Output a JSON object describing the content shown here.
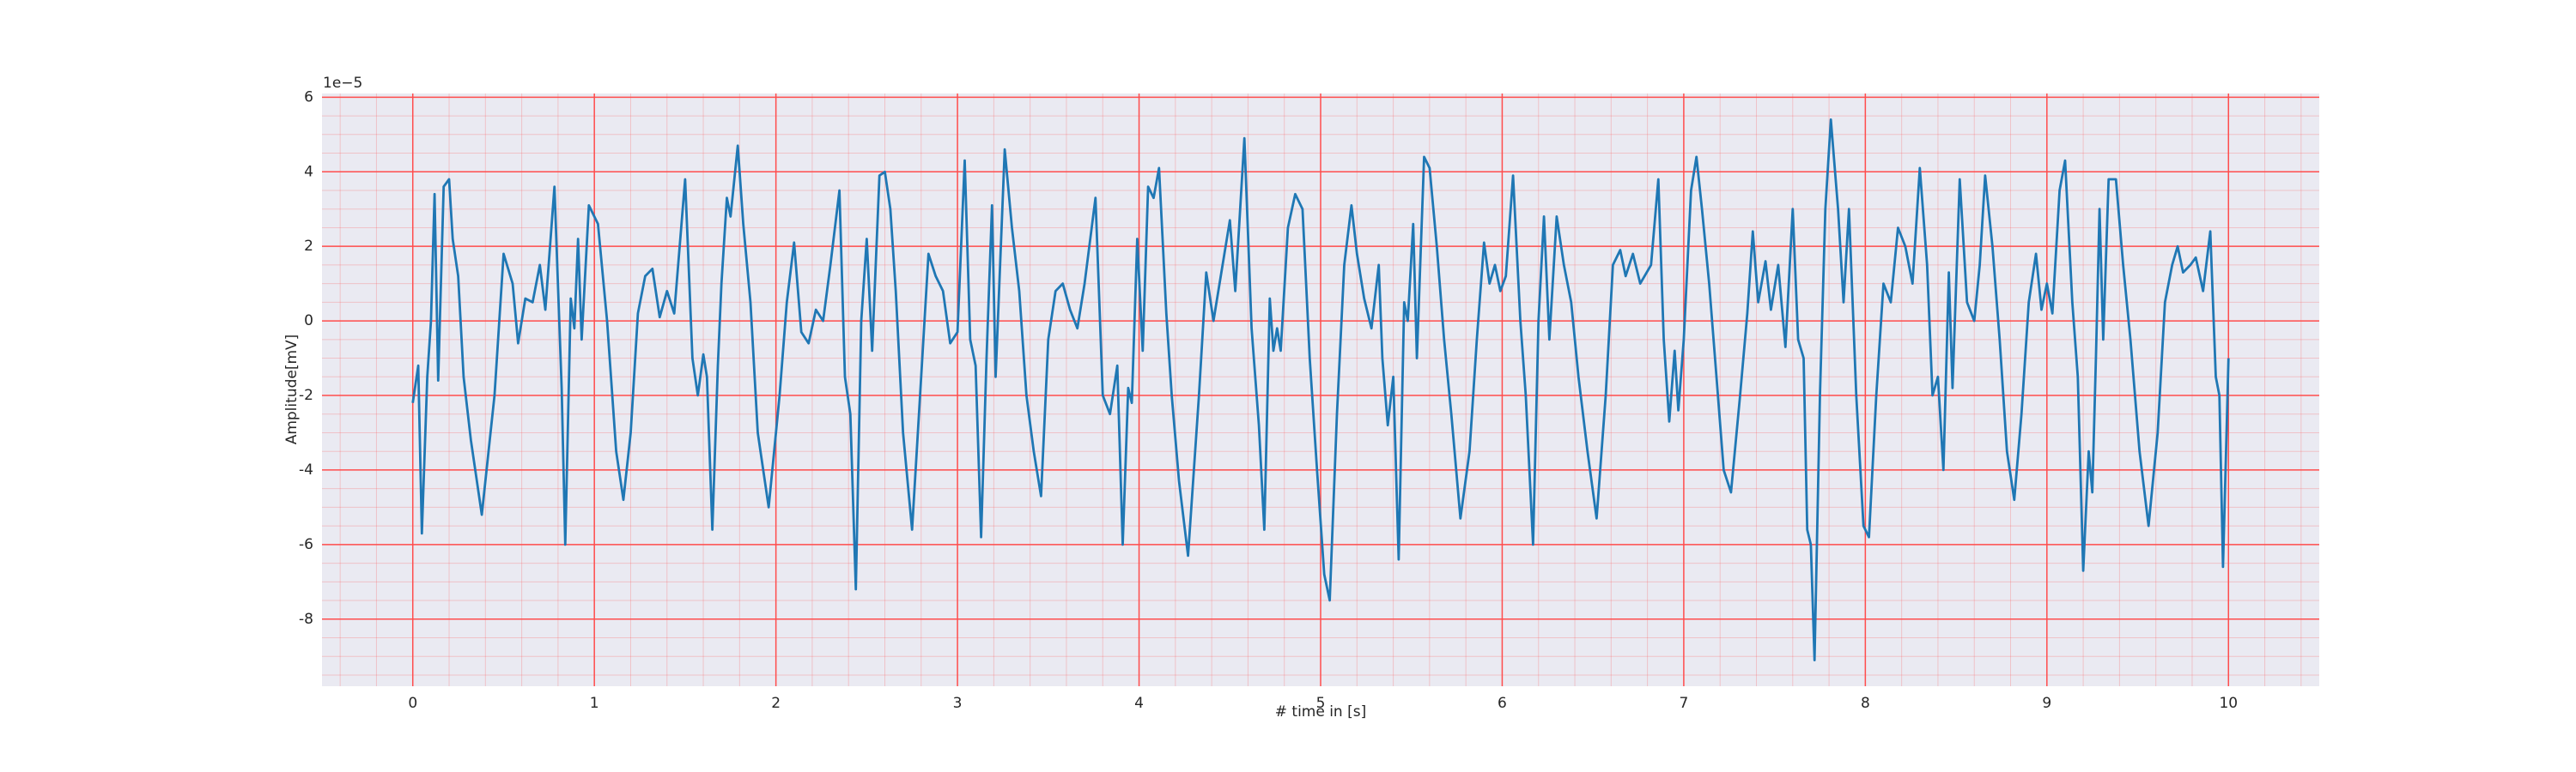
{
  "chart_data": {
    "type": "line",
    "xlabel": "# time in [s]",
    "ylabel": "Amplitude[mV]",
    "offset_label": "1e−5",
    "xlim": [
      -0.5,
      10.5
    ],
    "xticks": [
      0,
      1,
      2,
      3,
      4,
      5,
      6,
      7,
      8,
      9,
      10
    ],
    "ylim": [
      -9.8,
      6.1
    ],
    "yticks": [
      -8,
      -6,
      -4,
      -2,
      0,
      2,
      4,
      6
    ],
    "grid": true,
    "grid_color": "#ff4d4d",
    "minor_grid": true,
    "background": "#eaeaf2",
    "x": [
      0.0,
      0.03,
      0.05,
      0.08,
      0.1,
      0.12,
      0.14,
      0.17,
      0.2,
      0.22,
      0.25,
      0.28,
      0.32,
      0.38,
      0.45,
      0.5,
      0.55,
      0.58,
      0.62,
      0.66,
      0.7,
      0.73,
      0.78,
      0.82,
      0.84,
      0.87,
      0.89,
      0.91,
      0.93,
      0.97,
      1.02,
      1.07,
      1.12,
      1.16,
      1.2,
      1.24,
      1.28,
      1.32,
      1.36,
      1.4,
      1.44,
      1.5,
      1.54,
      1.57,
      1.6,
      1.62,
      1.65,
      1.68,
      1.7,
      1.73,
      1.75,
      1.79,
      1.82,
      1.86,
      1.9,
      1.96,
      2.02,
      2.06,
      2.1,
      2.14,
      2.18,
      2.22,
      2.26,
      2.3,
      2.35,
      2.38,
      2.41,
      2.44,
      2.47,
      2.5,
      2.53,
      2.57,
      2.6,
      2.63,
      2.66,
      2.7,
      2.75,
      2.8,
      2.84,
      2.88,
      2.92,
      2.96,
      3.0,
      3.04,
      3.07,
      3.1,
      3.13,
      3.16,
      3.19,
      3.21,
      3.26,
      3.3,
      3.34,
      3.38,
      3.42,
      3.46,
      3.5,
      3.54,
      3.58,
      3.62,
      3.66,
      3.7,
      3.76,
      3.8,
      3.84,
      3.88,
      3.91,
      3.94,
      3.96,
      3.99,
      4.02,
      4.05,
      4.08,
      4.11,
      4.15,
      4.18,
      4.22,
      4.27,
      4.33,
      4.37,
      4.41,
      4.45,
      4.5,
      4.53,
      4.58,
      4.62,
      4.66,
      4.69,
      4.72,
      4.74,
      4.76,
      4.78,
      4.82,
      4.86,
      4.9,
      4.94,
      4.98,
      5.02,
      5.05,
      5.09,
      5.13,
      5.17,
      5.2,
      5.24,
      5.28,
      5.32,
      5.34,
      5.37,
      5.4,
      5.43,
      5.46,
      5.48,
      5.51,
      5.53,
      5.57,
      5.6,
      5.64,
      5.68,
      5.72,
      5.77,
      5.82,
      5.86,
      5.9,
      5.93,
      5.96,
      5.99,
      6.02,
      6.06,
      6.1,
      6.13,
      6.17,
      6.2,
      6.23,
      6.26,
      6.3,
      6.34,
      6.38,
      6.42,
      6.47,
      6.52,
      6.57,
      6.61,
      6.65,
      6.68,
      6.72,
      6.76,
      6.82,
      6.86,
      6.89,
      6.92,
      6.95,
      6.97,
      7.0,
      7.04,
      7.07,
      7.1,
      7.14,
      7.18,
      7.22,
      7.26,
      7.31,
      7.35,
      7.38,
      7.41,
      7.45,
      7.48,
      7.52,
      7.56,
      7.6,
      7.63,
      7.66,
      7.68,
      7.7,
      7.72,
      7.75,
      7.78,
      7.81,
      7.85,
      7.88,
      7.91,
      7.95,
      7.99,
      8.02,
      8.06,
      8.1,
      8.14,
      8.18,
      8.22,
      8.26,
      8.3,
      8.34,
      8.37,
      8.4,
      8.43,
      8.46,
      8.48,
      8.52,
      8.56,
      8.6,
      8.63,
      8.66,
      8.7,
      8.74,
      8.78,
      8.82,
      8.86,
      8.9,
      8.94,
      8.97,
      9.0,
      9.03,
      9.07,
      9.1,
      9.14,
      9.17,
      9.2,
      9.23,
      9.25,
      9.27,
      9.29,
      9.31,
      9.34,
      9.38,
      9.42,
      9.46,
      9.51,
      9.56,
      9.61,
      9.65,
      9.69,
      9.72,
      9.75,
      9.79,
      9.82,
      9.86,
      9.9,
      9.93,
      9.95,
      9.97,
      10.0
    ],
    "series": [
      {
        "color": "#1f77b4",
        "values": [
          -2.2,
          -1.2,
          -5.7,
          -1.5,
          0.0,
          3.4,
          -1.6,
          3.6,
          3.8,
          2.2,
          1.2,
          -1.5,
          -3.2,
          -5.2,
          -2.0,
          1.8,
          1.0,
          -0.6,
          0.6,
          0.5,
          1.5,
          0.3,
          3.6,
          -1.8,
          -6.0,
          0.6,
          -0.2,
          2.2,
          -0.5,
          3.1,
          2.6,
          0.0,
          -3.5,
          -4.8,
          -3.0,
          0.2,
          1.2,
          1.4,
          0.1,
          0.8,
          0.2,
          3.8,
          -1.0,
          -2.0,
          -0.9,
          -1.5,
          -5.6,
          -1.2,
          1.0,
          3.3,
          2.8,
          4.7,
          2.6,
          0.5,
          -3.0,
          -5.0,
          -2.0,
          0.5,
          2.1,
          -0.3,
          -0.6,
          0.3,
          0.0,
          1.5,
          3.5,
          -1.5,
          -2.5,
          -7.2,
          0.0,
          2.2,
          -0.8,
          3.9,
          4.0,
          3.0,
          0.8,
          -3.0,
          -5.6,
          -1.5,
          1.8,
          1.2,
          0.8,
          -0.6,
          -0.3,
          4.3,
          -0.5,
          -1.2,
          -5.8,
          -1.0,
          3.1,
          -1.5,
          4.6,
          2.5,
          0.8,
          -2.0,
          -3.5,
          -4.7,
          -0.5,
          0.8,
          1.0,
          0.3,
          -0.2,
          1.0,
          3.3,
          -2.0,
          -2.5,
          -1.2,
          -6.0,
          -1.8,
          -2.2,
          2.2,
          -0.8,
          3.6,
          3.3,
          4.1,
          0.2,
          -2.0,
          -4.3,
          -6.3,
          -2.0,
          1.3,
          0.0,
          1.2,
          2.7,
          0.8,
          4.9,
          -0.2,
          -2.8,
          -5.6,
          0.6,
          -0.8,
          -0.2,
          -0.8,
          2.5,
          3.4,
          3.0,
          -1.0,
          -4.0,
          -6.8,
          -7.5,
          -2.5,
          1.5,
          3.1,
          1.8,
          0.6,
          -0.2,
          1.5,
          -1.0,
          -2.8,
          -1.5,
          -6.4,
          0.5,
          0.0,
          2.6,
          -1.0,
          4.4,
          4.1,
          2.0,
          -0.5,
          -2.5,
          -5.3,
          -3.5,
          -0.5,
          2.1,
          1.0,
          1.5,
          0.8,
          1.2,
          3.9,
          0.0,
          -2.0,
          -6.0,
          0.0,
          2.8,
          -0.5,
          2.8,
          1.5,
          0.5,
          -1.5,
          -3.5,
          -5.3,
          -2.0,
          1.5,
          1.9,
          1.2,
          1.8,
          1.0,
          1.5,
          3.8,
          -0.5,
          -2.7,
          -0.8,
          -2.4,
          -0.5,
          3.5,
          4.4,
          3.0,
          1.0,
          -1.5,
          -4.0,
          -4.6,
          -2.0,
          0.2,
          2.4,
          0.5,
          1.6,
          0.3,
          1.5,
          -0.7,
          3.0,
          -0.5,
          -1.0,
          -5.6,
          -6.0,
          -9.1,
          -2.0,
          3.0,
          5.4,
          3.0,
          0.5,
          3.0,
          -2.0,
          -5.5,
          -5.8,
          -2.0,
          1.0,
          0.5,
          2.5,
          2.0,
          1.0,
          4.1,
          1.5,
          -2.0,
          -1.5,
          -4.0,
          1.3,
          -1.8,
          3.8,
          0.5,
          0.0,
          1.5,
          3.9,
          2.0,
          -0.5,
          -3.5,
          -4.8,
          -2.5,
          0.5,
          1.8,
          0.3,
          1.0,
          0.2,
          3.5,
          4.3,
          0.5,
          -1.5,
          -6.7,
          -3.5,
          -4.6,
          -1.0,
          3.0,
          -0.5,
          3.8,
          3.8,
          1.5,
          -0.5,
          -3.5,
          -5.5,
          -3.0,
          0.5,
          1.5,
          2.0,
          1.3,
          1.5,
          1.7,
          0.8,
          2.4,
          -1.5,
          -2.0,
          -6.6,
          -1.0
        ]
      }
    ]
  }
}
